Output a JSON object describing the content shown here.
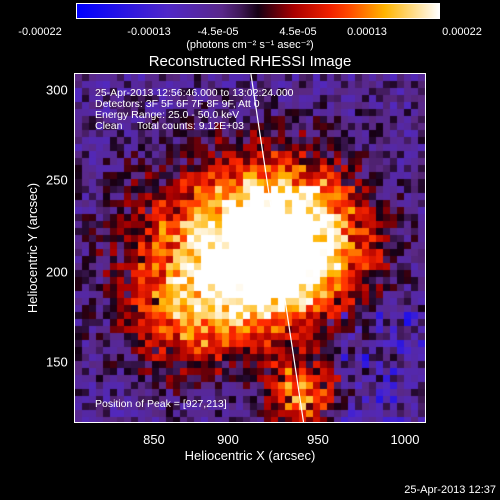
{
  "colorbar": {
    "tick_labels": [
      "-0.00022",
      "-0.00013",
      "-4.5e-05",
      "4.5e-05",
      "0.00013",
      "0.00022"
    ],
    "units": "(photons cm⁻² s⁻¹ asec⁻²)"
  },
  "title": "Reconstructed RHESSI Image",
  "info_lines": [
    "25-Apr-2013 12:56:46.000 to 13:02:24.000",
    "Detectors: 3F 5F 6F 7F 8F 9F, Att 0",
    "Energy Range: 25.0 - 50.0 keV",
    "Clean     Total counts: 9.12E+03"
  ],
  "peak_text": "Position of Peak = [927,213]",
  "axes": {
    "xlabel": "Heliocentric X (arcsec)",
    "ylabel": "Heliocentric Y (arcsec)",
    "x_ticks": [
      "850",
      "900",
      "950",
      "1000"
    ],
    "y_ticks": [
      "300",
      "250",
      "200",
      "150"
    ],
    "x_range": [
      817,
      1010
    ],
    "y_range": [
      117,
      310
    ]
  },
  "limb_line": {
    "x": [
      914,
      943
    ],
    "y": [
      310,
      117
    ]
  },
  "peak_position": [
    927,
    213
  ],
  "timestamp": "25-Apr-2013 12:37"
}
